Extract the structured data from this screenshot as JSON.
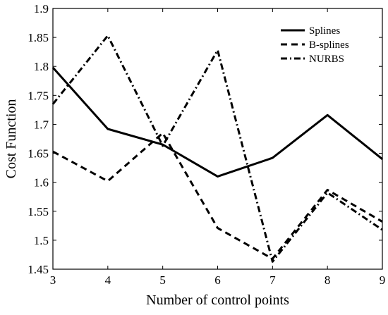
{
  "chart_data": {
    "type": "line",
    "title": "",
    "xlabel": "Number of control points",
    "ylabel": "Cost Function",
    "x": [
      3,
      4,
      5,
      6,
      7,
      8,
      9
    ],
    "xlim": [
      3,
      9
    ],
    "ylim": [
      1.45,
      1.9
    ],
    "xticks": [
      "3",
      "4",
      "5",
      "6",
      "7",
      "8",
      "9"
    ],
    "yticks": [
      "1.45",
      "1.5",
      "1.55",
      "1.6",
      "1.65",
      "1.7",
      "1.75",
      "1.8",
      "1.85",
      "1.9"
    ],
    "grid": false,
    "legend_position": "top-right",
    "series": [
      {
        "name": "Splines",
        "style": "solid",
        "color": "#000000",
        "values": [
          1.798,
          1.692,
          1.665,
          1.61,
          1.642,
          1.716,
          1.64
        ]
      },
      {
        "name": "B-splines",
        "style": "dashed",
        "color": "#000000",
        "values": [
          1.653,
          1.602,
          1.685,
          1.521,
          1.468,
          1.587,
          1.532
        ]
      },
      {
        "name": "NURBS",
        "style": "dash-dot",
        "color": "#000000",
        "values": [
          1.735,
          1.853,
          1.663,
          1.828,
          1.463,
          1.582,
          1.518
        ]
      }
    ]
  }
}
